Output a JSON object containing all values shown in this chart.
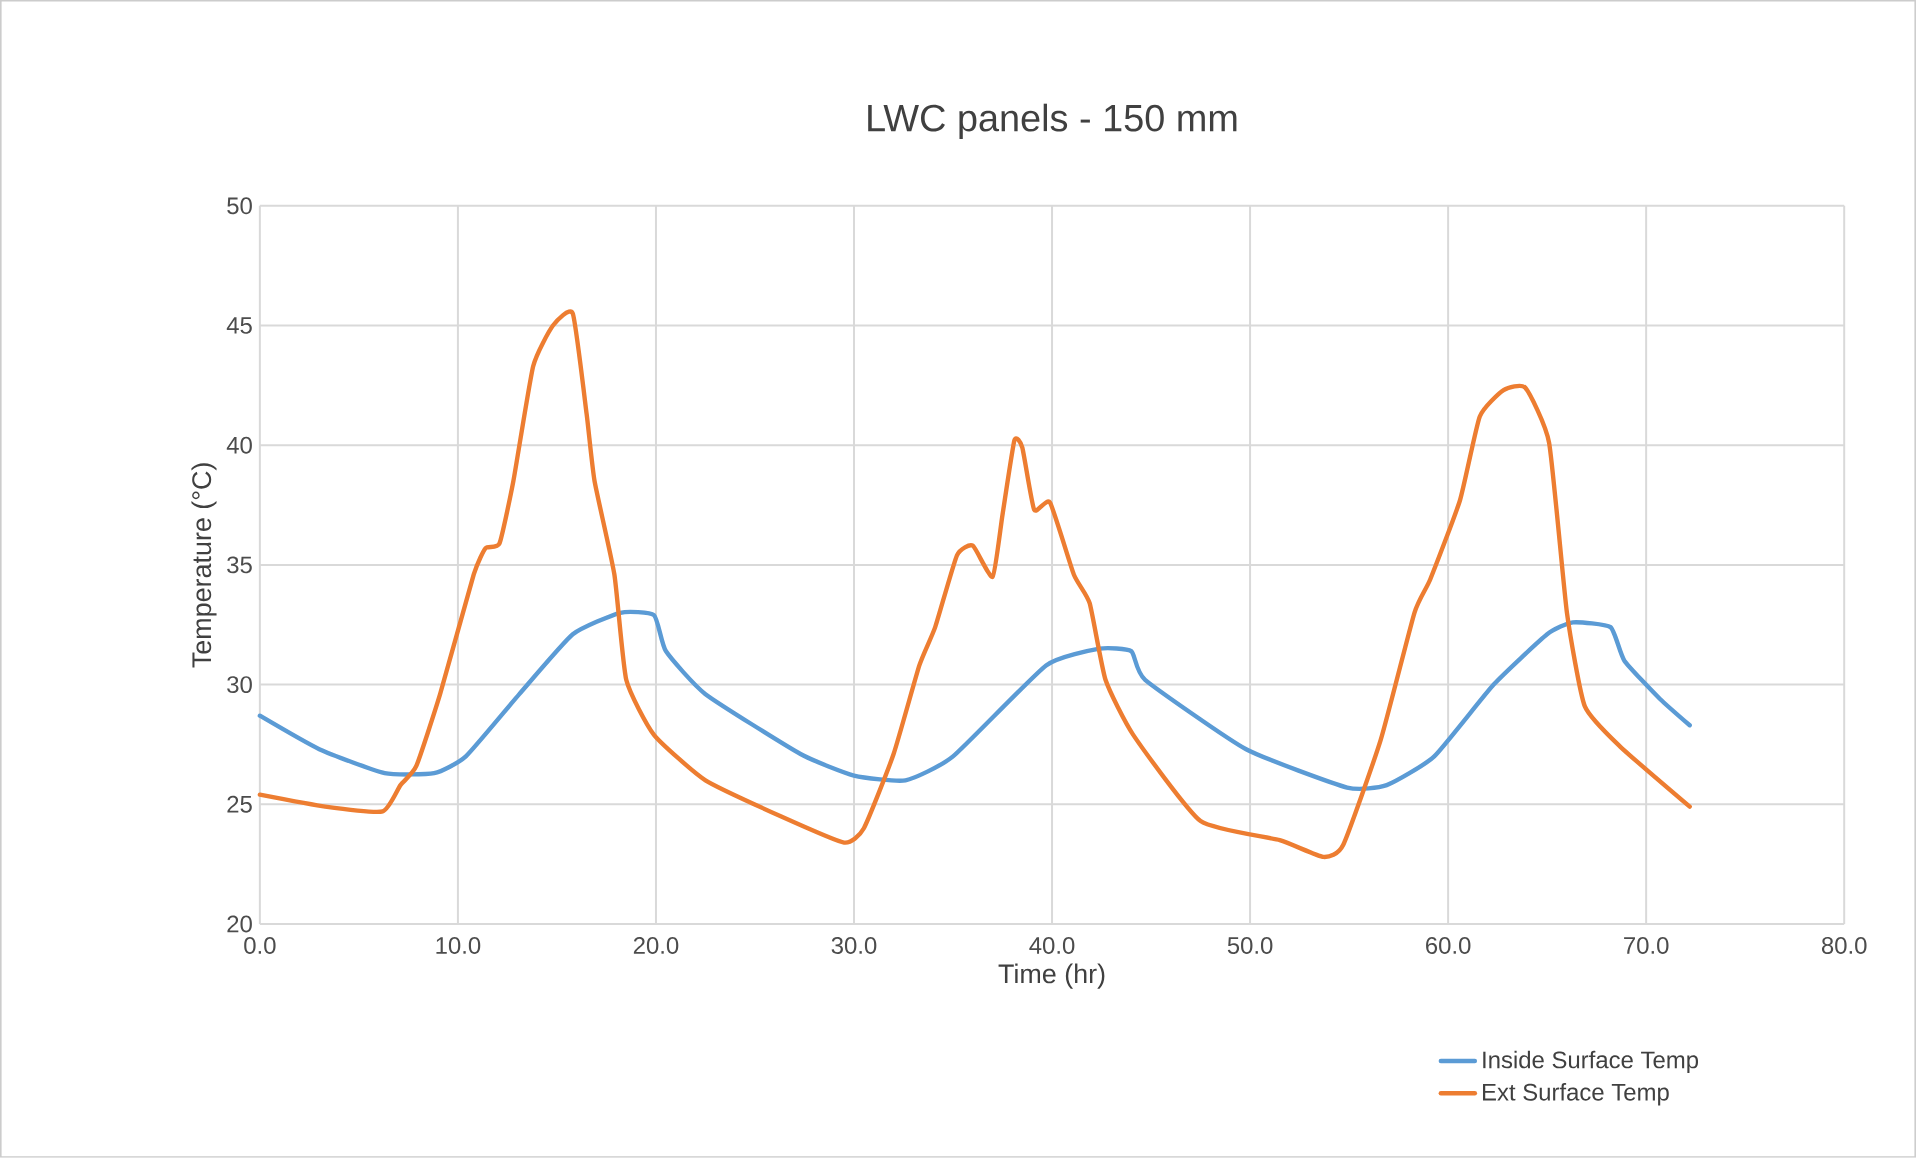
{
  "chart_data": {
    "type": "line",
    "title": "LWC panels - 150 mm",
    "xlabel": "Time (hr)",
    "ylabel": "Temperature (°C)",
    "xlim": [
      0,
      80
    ],
    "ylim": [
      20,
      50
    ],
    "xticks": [
      {
        "value": 0,
        "label": "0.0"
      },
      {
        "value": 10,
        "label": "10.0"
      },
      {
        "value": 20,
        "label": "20.0"
      },
      {
        "value": 30,
        "label": "30.0"
      },
      {
        "value": 40,
        "label": "40.0"
      },
      {
        "value": 50,
        "label": "50.0"
      },
      {
        "value": 60,
        "label": "60.0"
      },
      {
        "value": 70,
        "label": "70.0"
      },
      {
        "value": 80,
        "label": "80.0"
      }
    ],
    "yticks": [
      20,
      25,
      30,
      35,
      40,
      45,
      50
    ],
    "grid": true,
    "legend": "bottom right",
    "marker": "none",
    "line_style": "solid",
    "series": [
      {
        "name": "Inside Surface Temp",
        "color": "#5b9bd5",
        "x": [
          0,
          3,
          6.3,
          8.8,
          10.4,
          13.1,
          15.8,
          18.2,
          19.9,
          20.5,
          22.5,
          27.3,
          30,
          32.6,
          35,
          39.7,
          42.4,
          44,
          44.7,
          49.8,
          54.9,
          56.9,
          59.3,
          62.3,
          65,
          66.3,
          68.2,
          68.9,
          70.7,
          72.2
        ],
        "values": [
          28.7,
          27.3,
          26.3,
          26.3,
          27,
          29.6,
          32.1,
          33,
          32.9,
          31.4,
          29.6,
          27.1,
          26.2,
          26,
          27,
          30.8,
          31.5,
          31.4,
          30.2,
          27.3,
          25.7,
          25.8,
          27,
          30,
          32.1,
          32.6,
          32.4,
          31,
          29.4,
          28.3
        ]
      },
      {
        "name": "Ext Surface Temp",
        "color": "#ed7d31",
        "x": [
          0,
          3.3,
          6.2,
          7.1,
          7.9,
          9.1,
          10.8,
          11.4,
          12.1,
          12.8,
          13.8,
          14.8,
          15.8,
          16.5,
          16.9,
          17.9,
          18.5,
          19.9,
          22.5,
          26.3,
          29.5,
          30.5,
          32,
          33.3,
          34.1,
          35.2,
          36,
          37,
          37.5,
          38.1,
          38.5,
          39.1,
          39.9,
          41.1,
          41.9,
          42.7,
          44.1,
          47.5,
          51.5,
          53.7,
          54.7,
          56.6,
          58.3,
          59.1,
          60.6,
          61.6,
          62.8,
          63.9,
          65.1,
          66,
          66.9,
          68.7,
          72.2
        ],
        "values": [
          25.4,
          24.9,
          24.7,
          25.8,
          26.6,
          29.6,
          34.6,
          35.7,
          35.9,
          38.5,
          43.3,
          45,
          45.5,
          41.3,
          38.5,
          34.6,
          30.2,
          27.9,
          26,
          24.5,
          23.4,
          24,
          27.1,
          30.8,
          32.4,
          35.4,
          35.8,
          34.5,
          37.1,
          40.2,
          39.9,
          37.3,
          37.6,
          34.6,
          33.4,
          30.2,
          27.9,
          24.3,
          23.5,
          22.8,
          23.3,
          27.7,
          33,
          34.4,
          37.7,
          41.2,
          42.3,
          42.4,
          40.1,
          33,
          29.1,
          27.4,
          24.9
        ]
      }
    ]
  }
}
